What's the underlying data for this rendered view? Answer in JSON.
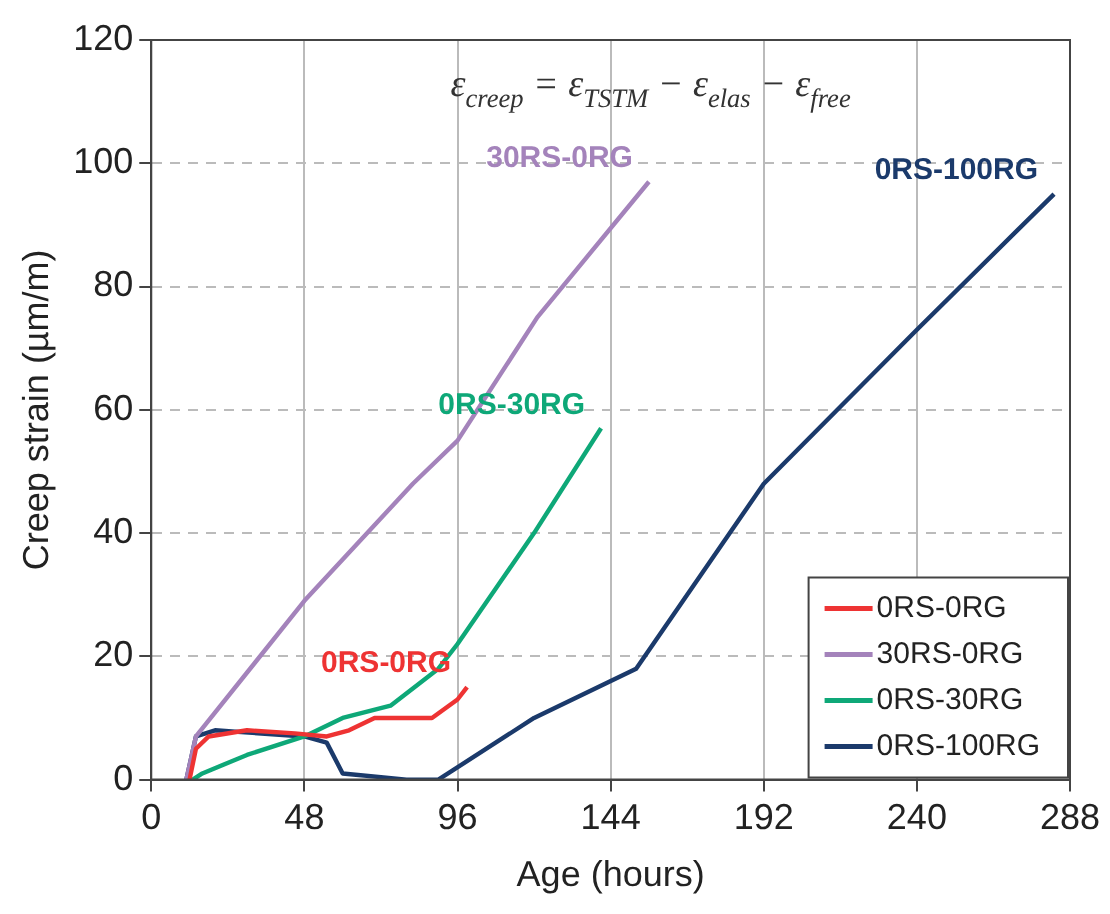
{
  "chart_data": {
    "type": "line",
    "xlabel": "Age (hours)",
    "ylabel": "Creep strain (µm/m)",
    "xlim": [
      0,
      288
    ],
    "xticks": [
      0,
      48,
      96,
      144,
      192,
      240,
      288
    ],
    "ylim": [
      0,
      120
    ],
    "yticks": [
      0,
      20,
      40,
      60,
      80,
      100,
      120
    ],
    "grid": true,
    "legend": "bottom right",
    "marker": "none",
    "line_style": "solid",
    "series": [
      {
        "name": "0RS-0RG",
        "color": "#ee3333",
        "x": [
          12,
          14,
          18,
          30,
          45,
          55,
          62,
          70,
          80,
          88,
          96,
          99
        ],
        "values": [
          0,
          5,
          7,
          8,
          7.5,
          7,
          8,
          10,
          10,
          10,
          13,
          15
        ]
      },
      {
        "name": "30RS-0RG",
        "color": "#a483bb",
        "x": [
          11,
          14,
          48,
          82,
          96,
          121,
          156
        ],
        "values": [
          0,
          7,
          29,
          48,
          55,
          75,
          97
        ]
      },
      {
        "name": "0RS-30RG",
        "color": "#0ea878",
        "x": [
          13,
          16,
          30,
          48,
          60,
          75,
          90,
          96,
          120,
          141
        ],
        "values": [
          0,
          1,
          4,
          7,
          10,
          12,
          18,
          22,
          40,
          57
        ]
      },
      {
        "name": "0RS-100RG",
        "color": "#1b3a6b",
        "x": [
          11,
          14,
          20,
          48,
          55,
          60,
          80,
          90,
          120,
          152,
          192,
          240,
          283
        ],
        "values": [
          0,
          7,
          8,
          7,
          6,
          1,
          0,
          0,
          10,
          18,
          48,
          73,
          95
        ]
      }
    ],
    "annotations": [
      "ε$_{creep}$ = ε$_{TSTM}$ − ε$_{elas}$ − ε$_{free}$"
    ]
  }
}
